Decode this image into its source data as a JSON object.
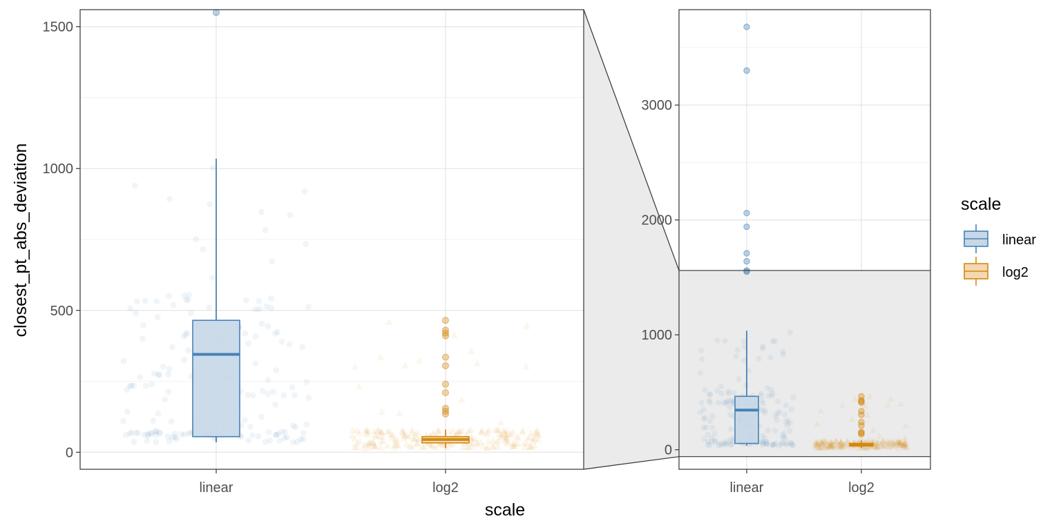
{
  "chart_data": [
    {
      "type": "boxplot",
      "panel": "main",
      "xlabel": "scale",
      "ylabel": "closest_pt_abs_deviation",
      "categories": [
        "linear",
        "log2"
      ],
      "ylim": [
        -60,
        1560
      ],
      "y_ticks": [
        0,
        500,
        1000,
        1500
      ],
      "grid": true,
      "series": [
        {
          "name": "linear",
          "color": "#4682B4",
          "fill": "#C6D7E8",
          "box": {
            "q1": 55,
            "median": 345,
            "q3": 465,
            "whisker_low": 35,
            "whisker_high": 1035
          },
          "outliers": [
            1550
          ]
        },
        {
          "name": "log2",
          "color": "#D4880F",
          "fill": "#F2D9B0",
          "box": {
            "q1": 33,
            "median": 45,
            "q3": 55,
            "whisker_low": 15,
            "whisker_high": 80
          },
          "outliers": [
            135,
            145,
            155,
            210,
            240,
            305,
            335,
            410,
            420,
            430,
            465
          ]
        }
      ]
    },
    {
      "type": "boxplot",
      "panel": "zoom",
      "categories": [
        "linear",
        "log2"
      ],
      "ylim": [
        -170,
        3830
      ],
      "y_ticks": [
        0,
        1000,
        2000,
        3000
      ],
      "grid": true,
      "zoom_region": [
        -60,
        1560
      ],
      "series": [
        {
          "name": "linear",
          "color": "#4682B4",
          "fill": "#C6D7E8",
          "box": {
            "q1": 55,
            "median": 345,
            "q3": 465,
            "whisker_low": 35,
            "whisker_high": 1035
          },
          "outliers": [
            1550,
            1560,
            1640,
            1710,
            1940,
            2060,
            3300,
            3680
          ]
        },
        {
          "name": "log2",
          "color": "#D4880F",
          "fill": "#F2D9B0",
          "box": {
            "q1": 33,
            "median": 45,
            "q3": 55,
            "whisker_low": 15,
            "whisker_high": 80
          },
          "outliers": [
            135,
            145,
            155,
            210,
            240,
            305,
            335,
            410,
            420,
            430,
            465
          ]
        }
      ]
    }
  ],
  "legend": {
    "title": "scale",
    "items": [
      {
        "label": "linear",
        "color": "#4682B4",
        "fill": "#C6D7E8"
      },
      {
        "label": "log2",
        "color": "#D4880F",
        "fill": "#F2D9B0"
      }
    ]
  }
}
